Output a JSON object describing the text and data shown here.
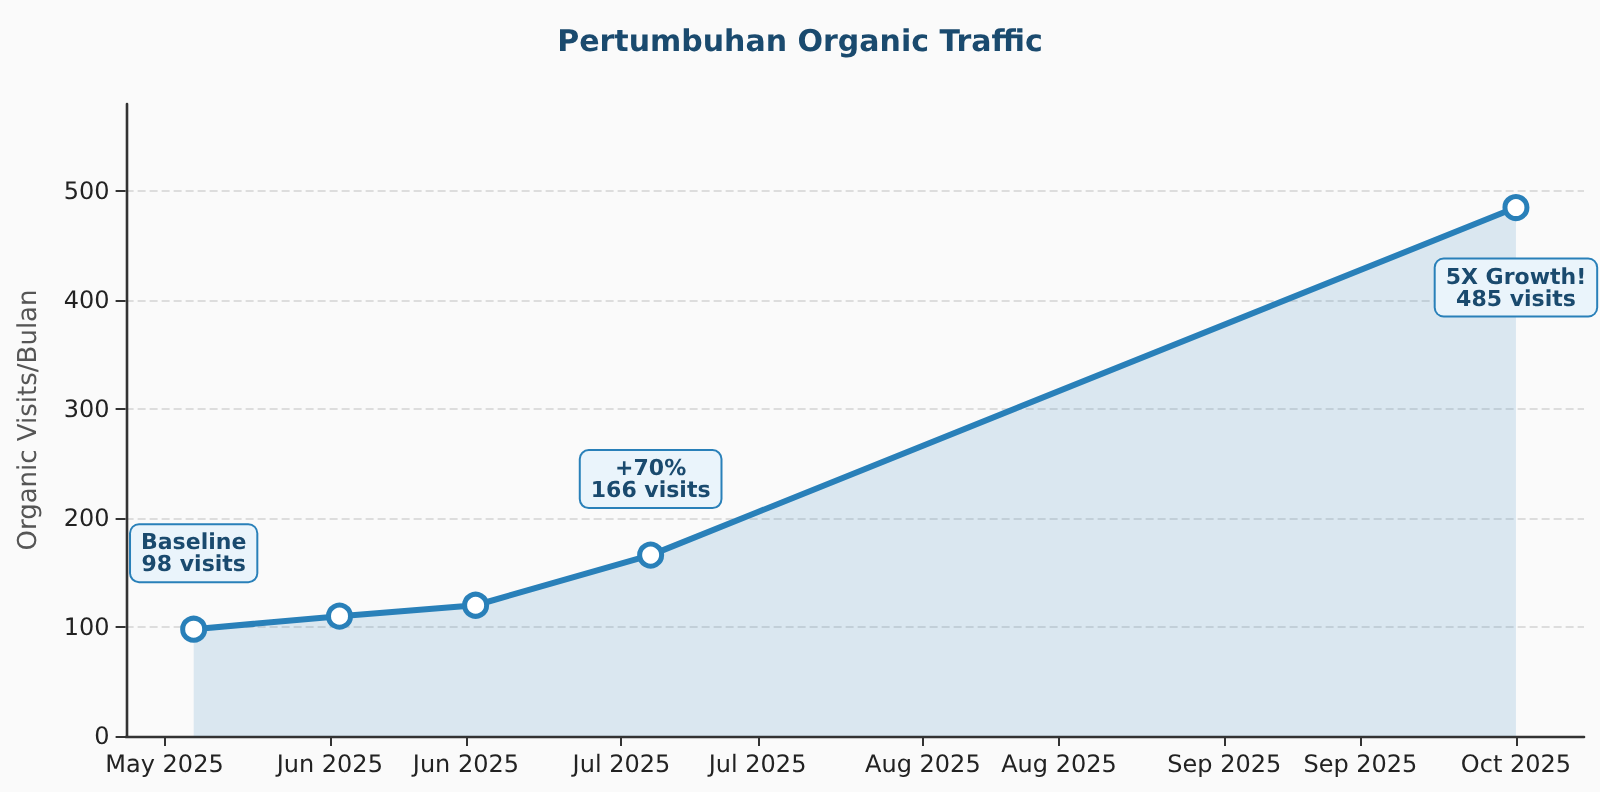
{
  "chart_data": {
    "type": "area",
    "title": "Pertumbuhan Organic Traffic",
    "ylabel": "Organic Visits/Bulan",
    "x": [
      "2025-05-18",
      "2025-06-02",
      "2025-06-16",
      "2025-07-04",
      "2025-10-01"
    ],
    "series": [
      {
        "color": "#2980b9",
        "values": [
          98,
          110,
          120,
          166,
          485
        ]
      }
    ],
    "xlim": [
      "2025-05-11",
      "2025-10-08"
    ],
    "xticks": [
      {
        "value": "2025-05-15",
        "label": "May 2025"
      },
      {
        "value": "2025-06-01",
        "label": "Jun 2025"
      },
      {
        "value": "2025-06-15",
        "label": "Jun 2025"
      },
      {
        "value": "2025-07-01",
        "label": "Jul 2025"
      },
      {
        "value": "2025-07-15",
        "label": "Jul 2025"
      },
      {
        "value": "2025-08-01",
        "label": "Aug 2025"
      },
      {
        "value": "2025-08-15",
        "label": "Aug 2025"
      },
      {
        "value": "2025-09-01",
        "label": "Sep 2025"
      },
      {
        "value": "2025-09-15",
        "label": "Sep 2025"
      },
      {
        "value": "2025-10-01",
        "label": "Oct 2025"
      }
    ],
    "ylim": [
      0,
      580
    ],
    "yticks": [
      0,
      100,
      200,
      300,
      400,
      500
    ],
    "grid": "y",
    "marker": "circle",
    "line_style": "solid",
    "annotations": [
      {
        "text": "Baseline\n98 visits",
        "x": "2025-05-18",
        "y": 98
      },
      {
        "text": "+70%\n166 visits",
        "x": "2025-07-04",
        "y": 166
      },
      {
        "text": "5X Growth!\n485 visits",
        "x": "2025-10-01",
        "y": 485
      }
    ]
  }
}
